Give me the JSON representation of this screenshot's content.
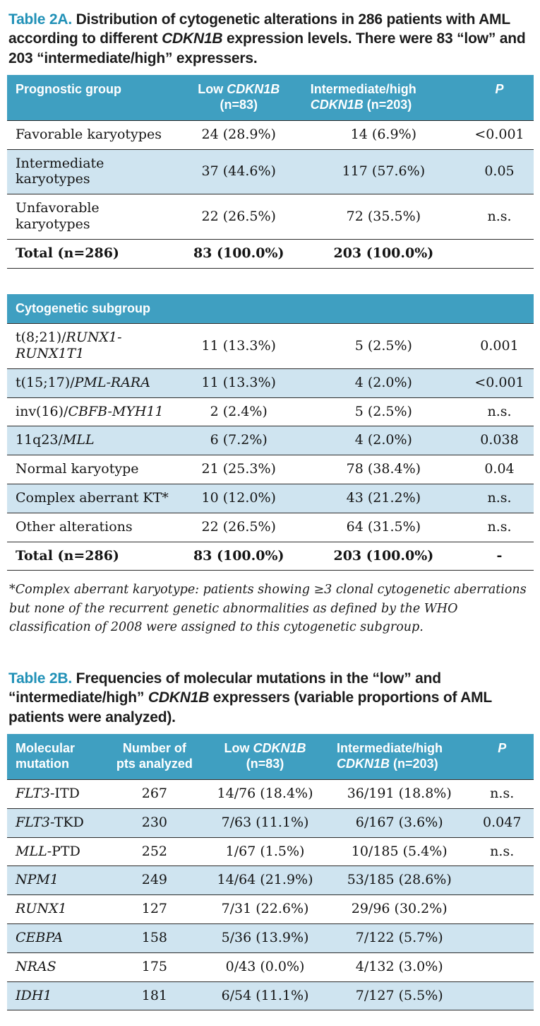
{
  "colors": {
    "header_bg": "#3f9fc1",
    "stripe_bg": "#cfe4f0",
    "caption_accent": "#2191b7"
  },
  "table_a": {
    "caption_label": "Table 2A.",
    "caption_text": " Distribution of cytogenetic alterations in 286 patients with AML according to different _CDKN1B_ expression levels. There were 83 “low” and 203 “intermediate/high” expressers.",
    "header": {
      "col1": "Prognostic group",
      "col2": "Low _CDKN1B_\n(n=83)",
      "col3": "Intermediate/high\n_CDKN1B_ (n=203)",
      "col4": "_P_"
    },
    "section1_rows": [
      {
        "cells": [
          "Favorable karyotypes",
          "24 (28.9%)",
          "14 (6.9%)",
          "<0.001"
        ],
        "bold": false,
        "shaded": false
      },
      {
        "cells": [
          "Intermediate karyotypes",
          "37 (44.6%)",
          "117 (57.6%)",
          "0.05"
        ],
        "bold": false,
        "shaded": true
      },
      {
        "cells": [
          "Unfavorable karyotypes",
          "22 (26.5%)",
          "72 (35.5%)",
          "n.s."
        ],
        "bold": false,
        "shaded": false
      },
      {
        "cells": [
          "Total (n=286)",
          "83 (100.0%)",
          "203 (100.0%)",
          ""
        ],
        "bold": true,
        "shaded": false
      }
    ],
    "subheader": "Cytogenetic subgroup",
    "section2_rows": [
      {
        "cells": [
          "t(8;21)/_RUNX1-RUNX1T1_",
          "11 (13.3%)",
          "5 (2.5%)",
          "0.001"
        ],
        "bold": false,
        "shaded": false
      },
      {
        "cells": [
          "t(15;17)/_PML-RARA_",
          "11 (13.3%)",
          "4 (2.0%)",
          "<0.001"
        ],
        "bold": false,
        "shaded": true
      },
      {
        "cells": [
          "inv(16)/_CBFB-MYH11_",
          "2 (2.4%)",
          "5 (2.5%)",
          "n.s."
        ],
        "bold": false,
        "shaded": false
      },
      {
        "cells": [
          "11q23/_MLL_",
          "6 (7.2%)",
          "4 (2.0%)",
          "0.038"
        ],
        "bold": false,
        "shaded": true
      },
      {
        "cells": [
          "Normal karyotype",
          "21 (25.3%)",
          "78 (38.4%)",
          "0.04"
        ],
        "bold": false,
        "shaded": false
      },
      {
        "cells": [
          "Complex aberrant KT*",
          "10 (12.0%)",
          "43 (21.2%)",
          "n.s."
        ],
        "bold": false,
        "shaded": true
      },
      {
        "cells": [
          "Other alterations",
          "22 (26.5%)",
          "64 (31.5%)",
          "n.s."
        ],
        "bold": false,
        "shaded": false
      },
      {
        "cells": [
          "Total (n=286)",
          "83 (100.0%)",
          "203 (100.0%)",
          "-"
        ],
        "bold": true,
        "shaded": false
      }
    ],
    "footnote": "*Complex aberrant karyotype: patients showing ≥3 clonal cytogenetic aberrations but none of the recurrent genetic abnormalities as defined by the WHO classification of 2008 were assigned to this cytogenetic subgroup."
  },
  "table_b": {
    "caption_label": "Table 2B.",
    "caption_text": " Frequencies of molecular mutations in the “low” and “intermediate/high” _CDKN1B_ expressers (variable proportions of AML patients were analyzed).",
    "header": {
      "col1": "Molecular\nmutation",
      "col2": "Number of\npts analyzed",
      "col3": "Low _CDKN1B_\n(n=83)",
      "col4": "Intermediate/high\n_CDKN1B_ (n=203)",
      "col5": "_P_"
    },
    "rows": [
      {
        "cells": [
          "_FLT3_-ITD",
          "267",
          "14/76 (18.4%)",
          "36/191 (18.8%)",
          "n.s."
        ],
        "bold": false,
        "shaded": false
      },
      {
        "cells": [
          "_FLT3_-TKD",
          "230",
          "7/63 (11.1%)",
          "6/167 (3.6%)",
          "0.047"
        ],
        "bold": false,
        "shaded": true
      },
      {
        "cells": [
          "_MLL_-PTD",
          "252",
          "1/67 (1.5%)",
          "10/185 (5.4%)",
          "n.s."
        ],
        "bold": false,
        "shaded": false
      },
      {
        "cells": [
          "_NPM1_",
          "249",
          "14/64 (21.9%)",
          "53/185 (28.6%)",
          ""
        ],
        "bold": false,
        "shaded": true
      },
      {
        "cells": [
          "_RUNX1_",
          "127",
          "7/31 (22.6%)",
          "29/96 (30.2%)",
          ""
        ],
        "bold": false,
        "shaded": false
      },
      {
        "cells": [
          "_CEBPA_",
          "158",
          "5/36 (13.9%)",
          "7/122 (5.7%)",
          ""
        ],
        "bold": false,
        "shaded": true
      },
      {
        "cells": [
          "_NRAS_",
          "175",
          "0/43 (0.0%)",
          "4/132 (3.0%)",
          ""
        ],
        "bold": false,
        "shaded": false
      },
      {
        "cells": [
          "_IDH1_",
          "181",
          "6/54 (11.1%)",
          "7/127 (5.5%)",
          ""
        ],
        "bold": false,
        "shaded": true
      }
    ]
  }
}
